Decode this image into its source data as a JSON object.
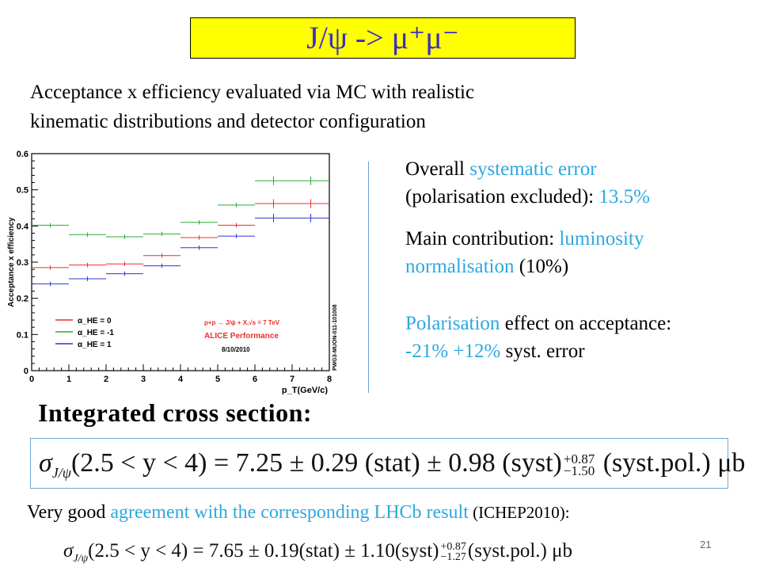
{
  "title": "J/ψ -> μ⁺μ⁻",
  "intro": {
    "line1": "Acceptance x efficiency evaluated via MC with realistic",
    "line2": "kinematic distributions and detector configuration"
  },
  "right_panel": {
    "overall_prefix": "Overall ",
    "overall_highlight": "systematic error",
    "overall_line2": "(polarisation excluded): ",
    "overall_value": "13.5%",
    "main_prefix": "Main contribution: ",
    "main_highlight": "luminosity",
    "main_line2_highlight": "normalisation",
    "main_line2_rest": " (10%)",
    "polar_highlight": "Polarisation",
    "polar_rest": " effect on acceptance:",
    "polar_values": " -21% +12%",
    "polar_rest2": " syst. error"
  },
  "chart_data": {
    "type": "scatter",
    "ylabel": "Acceptance x efficiency",
    "xlabel": "p_T(GeV/c)",
    "xlim": [
      0,
      8
    ],
    "ylim": [
      0,
      0.6
    ],
    "x_ticks": [
      "0",
      "1",
      "2",
      "3",
      "4",
      "5",
      "6",
      "7",
      "8"
    ],
    "y_ticks": [
      "0",
      "0.1",
      "0.2",
      "0.3",
      "0.4",
      "0.5",
      "0.6"
    ],
    "bin_edges": [
      0,
      1,
      2,
      3,
      4,
      5,
      6,
      7,
      8
    ],
    "series": [
      {
        "name": "α_HE = 0",
        "color": "#e8302a",
        "values": [
          0.285,
          0.292,
          0.295,
          0.318,
          0.368,
          0.402,
          0.462,
          0.462
        ]
      },
      {
        "name": "α_HE = -1",
        "color": "#2faa35",
        "values": [
          0.402,
          0.376,
          0.37,
          0.378,
          0.41,
          0.458,
          0.525,
          0.525
        ]
      },
      {
        "name": "α_HE = 1",
        "color": "#2d35d8",
        "values": [
          0.24,
          0.254,
          0.268,
          0.29,
          0.34,
          0.372,
          0.422,
          0.422
        ]
      }
    ],
    "annotation_process": "p+p → J/ψ + X,√s = 7 TeV",
    "annotation_perf": "ALICE Performance",
    "annotation_date": "8/10/2010",
    "side_label": "PWG3-MUON-011-101008"
  },
  "cross_section": {
    "heading": "Integrated cross section:",
    "sigma": "σ",
    "sub": "J/ψ",
    "body": "(2.5 < y < 4) = 7.25 ± 0.29 (stat) ± 0.98 (syst)",
    "sup": "+0.87",
    "low": "−1.50",
    "tail": " (syst.pol.) μb"
  },
  "agreement": {
    "prefix": "Very good ",
    "highlight": "agreement with the corresponding LHCb result",
    "suffix": " (ICHEP2010):"
  },
  "lhcb_formula": {
    "sigma": "σ",
    "sub": "J/ψ",
    "body": "(2.5 < y < 4) = 7.65 ± 0.19(stat) ± 1.10(syst)",
    "sup": "+0.87",
    "low": "−1.27",
    "tail": "(syst.pol.) μb"
  },
  "page_number": "21"
}
